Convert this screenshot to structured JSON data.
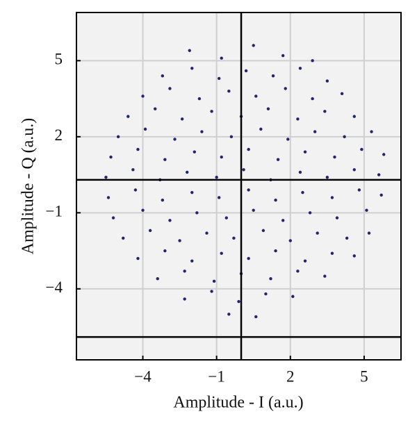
{
  "chart_data": {
    "type": "scatter",
    "xlabel": "Amplitude - I (a.u.)",
    "ylabel": "Amplitude - Q (a.u.)",
    "xlim": [
      -6.7,
      6.5
    ],
    "ylim": [
      -6.8,
      6.9
    ],
    "xticks": [
      {
        "value": -4,
        "label": "−4"
      },
      {
        "value": -1,
        "label": "−1"
      },
      2,
      5
    ],
    "yticks": [
      5,
      2,
      {
        "value": -1,
        "label": "−1"
      },
      {
        "value": -4,
        "label": "−4"
      }
    ],
    "grid": true,
    "reference_lines": {
      "x": [
        0
      ],
      "y": [
        0.3,
        -5.9
      ]
    },
    "series": [
      {
        "color": "#23236f",
        "x": [
          -2.1,
          -0.8,
          0.5,
          1.7,
          2.9,
          -3.2,
          -2.0,
          -0.9,
          0.2,
          1.3,
          2.4,
          3.5,
          -4.0,
          -2.9,
          -1.7,
          -0.5,
          0.6,
          1.8,
          2.9,
          4.1,
          -4.6,
          -3.5,
          -2.4,
          -1.2,
          0.0,
          1.1,
          2.3,
          3.4,
          4.6,
          -5.0,
          -3.9,
          -2.7,
          -1.6,
          -0.4,
          0.8,
          1.9,
          3.0,
          4.2,
          5.3,
          -5.3,
          -4.2,
          -3.1,
          -1.9,
          -0.8,
          0.3,
          1.5,
          2.6,
          3.8,
          4.9,
          5.8,
          -5.5,
          -4.4,
          -3.3,
          -2.2,
          -1.0,
          0.1,
          1.2,
          2.4,
          3.5,
          4.6,
          5.6,
          -5.4,
          -4.3,
          -3.2,
          -2.0,
          -0.9,
          0.3,
          1.4,
          2.5,
          3.7,
          4.8,
          5.7,
          -5.2,
          -4.0,
          -2.9,
          -1.8,
          -0.6,
          0.5,
          1.7,
          2.8,
          3.9,
          5.1,
          -4.8,
          -3.7,
          -2.5,
          -1.4,
          -0.3,
          0.9,
          2.0,
          3.1,
          4.3,
          5.2,
          -4.2,
          -3.1,
          -2.0,
          -0.8,
          0.3,
          1.4,
          2.6,
          3.7,
          4.6,
          -3.4,
          -2.3,
          -1.1,
          0.0,
          1.2,
          2.3,
          3.4,
          -2.3,
          -1.2,
          -0.1,
          1.0,
          2.1,
          -0.5,
          0.6
        ],
        "y": [
          5.4,
          5.1,
          5.6,
          5.2,
          5.0,
          4.4,
          4.7,
          4.3,
          4.6,
          4.4,
          4.7,
          4.2,
          3.6,
          3.9,
          3.5,
          3.8,
          3.6,
          3.9,
          3.5,
          3.7,
          2.8,
          3.1,
          2.7,
          3.0,
          2.8,
          3.1,
          2.7,
          3.0,
          2.8,
          2.0,
          2.3,
          1.9,
          2.2,
          2.0,
          2.3,
          1.9,
          2.2,
          2.0,
          2.2,
          1.2,
          1.5,
          1.1,
          1.4,
          1.2,
          1.5,
          1.1,
          1.4,
          1.2,
          1.5,
          1.3,
          0.4,
          0.7,
          0.3,
          0.6,
          0.4,
          0.7,
          0.3,
          0.6,
          0.4,
          0.7,
          0.5,
          -0.4,
          -0.1,
          -0.5,
          -0.2,
          -0.4,
          -0.1,
          -0.5,
          -0.2,
          -0.4,
          -0.1,
          -0.3,
          -1.2,
          -0.9,
          -1.3,
          -1.0,
          -1.2,
          -0.9,
          -1.3,
          -1.0,
          -1.2,
          -0.9,
          -2.0,
          -1.7,
          -2.1,
          -1.8,
          -2.0,
          -1.7,
          -2.1,
          -1.8,
          -2.0,
          -1.8,
          -2.8,
          -2.5,
          -2.9,
          -2.6,
          -2.8,
          -2.5,
          -2.9,
          -2.6,
          -2.7,
          -3.6,
          -3.3,
          -3.7,
          -3.4,
          -3.6,
          -3.3,
          -3.5,
          -4.4,
          -4.1,
          -4.5,
          -4.2,
          -4.3,
          -5.0,
          -5.1
        ]
      }
    ]
  }
}
